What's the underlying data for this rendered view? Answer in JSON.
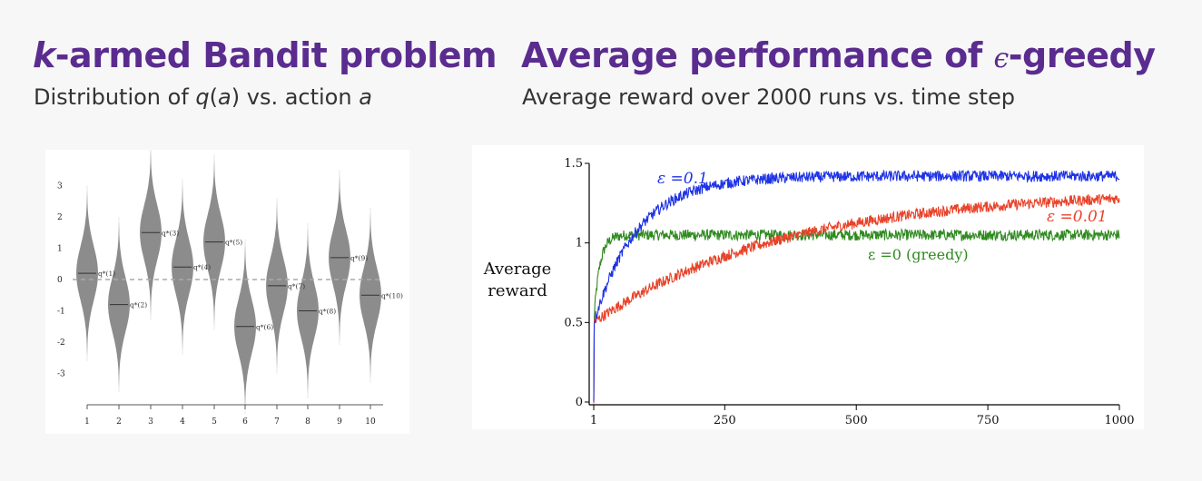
{
  "left": {
    "title_em": "k",
    "title_rest": "-armed Bandit problem",
    "subtitle_pre": "Distribution of ",
    "subtitle_q": "q",
    "subtitle_open": "(",
    "subtitle_a": "a",
    "subtitle_close": ")",
    "subtitle_mid": " vs. action ",
    "subtitle_a2": "a"
  },
  "right": {
    "title_pre": "Average performance of ",
    "title_eps": "ϵ",
    "title_post": "-greedy",
    "subtitle": "Average reward over 2000 runs vs. time step"
  },
  "chart_data": [
    {
      "type": "violin",
      "categories": [
        "1",
        "2",
        "3",
        "4",
        "5",
        "6",
        "7",
        "8",
        "9",
        "10"
      ],
      "values": [
        0.2,
        -0.8,
        1.5,
        0.4,
        1.2,
        -1.5,
        -0.2,
        -1.0,
        0.7,
        -0.5
      ],
      "point_labels": [
        "q*(1)",
        "q*(2)",
        "q*(3)",
        "q*(4)",
        "q*(5)",
        "q*(6)",
        "q*(7)",
        "q*(8)",
        "q*(9)",
        "q*(10)"
      ],
      "yticks": [
        "3",
        "2",
        "1",
        "0",
        "-1",
        "-2",
        "-3"
      ],
      "ylim": [
        -4,
        4
      ],
      "colors": {
        "violin": "#8c8c8c",
        "dashed": "#aaaaaa"
      }
    },
    {
      "type": "line",
      "xlim": [
        1,
        1000
      ],
      "ylim": [
        0,
        1.5
      ],
      "xticks": [
        "1",
        "250",
        "500",
        "750",
        "1000"
      ],
      "yticks": [
        "0",
        "0.5",
        "1",
        "1.5"
      ],
      "ylabel_line1": "Average",
      "ylabel_line2": "reward",
      "series": [
        {
          "name": "ε =0.1",
          "color": "#1f33e6",
          "asymptote": 1.42,
          "start": 0.5,
          "rate": 0.012
        },
        {
          "name": "ε =0.01",
          "color": "#e8432a",
          "asymptote": 1.33,
          "start": 0.5,
          "rate": 0.0028
        },
        {
          "name": "ε =0 (greedy)",
          "color": "#2f8a1f",
          "asymptote": 1.05,
          "start": 0.5,
          "rate": 0.09
        }
      ]
    }
  ]
}
